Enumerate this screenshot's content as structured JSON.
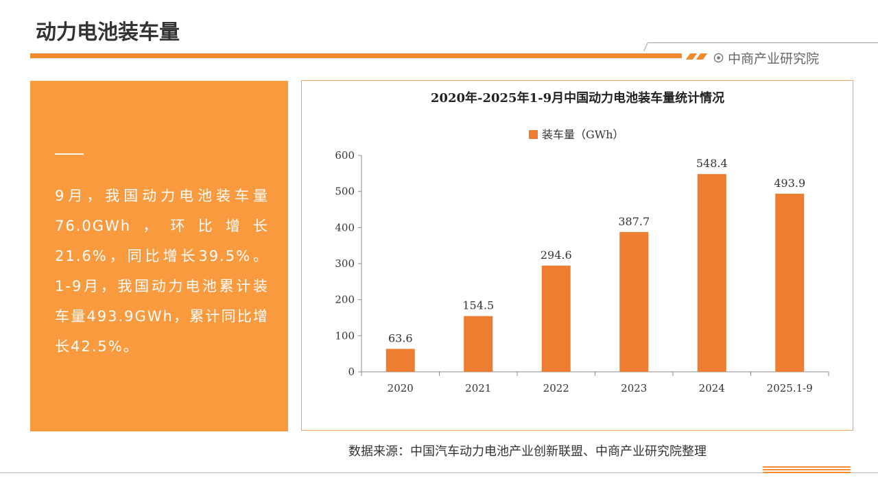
{
  "page": {
    "title": "动力电池装车量",
    "brand": "中商产业研究院"
  },
  "left_panel": {
    "paragraph": "9月，我国动力电池装车量76.0GWh，环比增长21.6%，同比增长39.5%。1-9月，我国动力电池累计装车量493.9GWh，累计同比增长42.5%。"
  },
  "source": "数据来源：中国汽车动力电池产业创新联盟、中商产业研究院整理",
  "colors": {
    "accent": "#f28a2c",
    "panel": "#fa9a3e",
    "bar": "#ed7d31"
  },
  "icons": {
    "brand_logo": "target-circle-icon"
  },
  "chart_data": {
    "type": "bar",
    "title": "2020年-2025年1-9月中国动力电池装车量统计情况",
    "categories": [
      "2020",
      "2021",
      "2022",
      "2023",
      "2024",
      "2025.1-9"
    ],
    "series": [
      {
        "name": "装车量（GWh）",
        "values": [
          63.6,
          154.5,
          294.6,
          387.7,
          548.4,
          493.9
        ]
      }
    ],
    "ylim": [
      0,
      600
    ],
    "yticks": [
      0,
      100,
      200,
      300,
      400,
      500,
      600
    ],
    "legend": "top-center",
    "grid": false,
    "data_labels": true
  }
}
